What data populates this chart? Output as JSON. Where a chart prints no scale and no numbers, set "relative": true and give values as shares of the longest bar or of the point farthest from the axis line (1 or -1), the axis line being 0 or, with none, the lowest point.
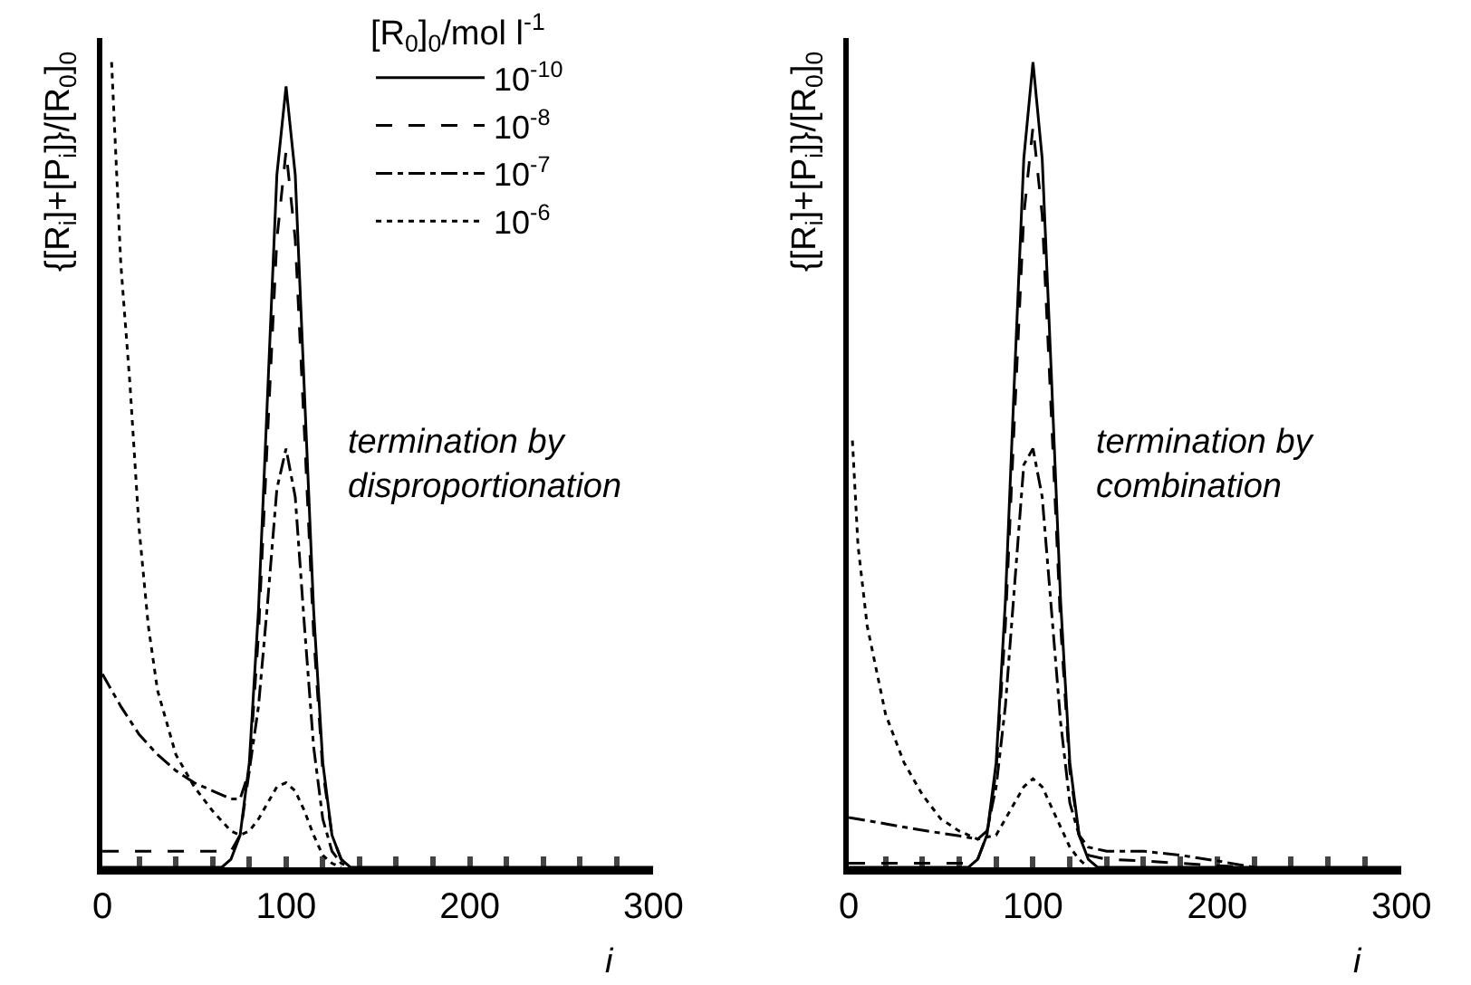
{
  "chart_data": [
    {
      "type": "line",
      "relative": true,
      "ylabel": "{[R$_{i}$]+[P$_{i}$]}/[R$_{0}$]$_{0}$",
      "xlabel": "i",
      "legend_title": "[R$_{0}$]$_{0}$/mol l$^{-1}$",
      "legend": "top right",
      "marker": "none",
      "annotations": [
        "termination by\ndisproportionation"
      ],
      "xlim": [
        0,
        300
      ],
      "xticks": [
        0,
        {
          "value": 20,
          "label": null
        },
        {
          "value": 40,
          "label": null
        },
        {
          "value": 60,
          "label": null
        },
        {
          "value": 80,
          "label": null
        },
        100,
        {
          "value": 120,
          "label": null
        },
        {
          "value": 140,
          "label": null
        },
        {
          "value": 160,
          "label": null
        },
        {
          "value": 180,
          "label": null
        },
        200,
        {
          "value": 220,
          "label": null
        },
        {
          "value": 240,
          "label": null
        },
        {
          "value": 260,
          "label": null
        },
        {
          "value": 280,
          "label": null
        },
        300
      ],
      "series": [
        {
          "name": "10$^{-10}$",
          "color": "#000000",
          "line_style": "solid",
          "x": [
            0,
            20,
            40,
            60,
            65,
            70,
            75,
            80,
            85,
            90,
            95,
            100,
            105,
            110,
            115,
            120,
            125,
            130,
            135,
            160,
            200,
            300
          ],
          "values": [
            0,
            0,
            0,
            0,
            0,
            0.01,
            0.04,
            0.13,
            0.32,
            0.59,
            0.86,
            0.97,
            0.86,
            0.59,
            0.32,
            0.13,
            0.04,
            0.01,
            0,
            0,
            0,
            0
          ]
        },
        {
          "name": "10$^{-8}$",
          "color": "#000000",
          "line_style": "dashed",
          "x": [
            0,
            20,
            40,
            60,
            65,
            70,
            75,
            80,
            85,
            90,
            95,
            100,
            105,
            110,
            115,
            120,
            125,
            130,
            135
          ],
          "values": [
            0.02,
            0.02,
            0.02,
            0.02,
            0.02,
            0.02,
            0.04,
            0.12,
            0.29,
            0.54,
            0.78,
            0.89,
            0.78,
            0.54,
            0.29,
            0.12,
            0.04,
            0.01,
            0
          ]
        },
        {
          "name": "10$^{-7}$",
          "color": "#000000",
          "line_style": "dashdot",
          "x": [
            0,
            10,
            20,
            30,
            40,
            50,
            60,
            70,
            75,
            80,
            85,
            90,
            95,
            100,
            105,
            110,
            115,
            120,
            125,
            130,
            135
          ],
          "values": [
            0.24,
            0.2,
            0.165,
            0.14,
            0.12,
            0.105,
            0.095,
            0.085,
            0.085,
            0.12,
            0.2,
            0.33,
            0.47,
            0.52,
            0.46,
            0.3,
            0.15,
            0.06,
            0.02,
            0.005,
            0
          ]
        },
        {
          "name": "10$^{-6}$",
          "color": "#000000",
          "line_style": "dotted",
          "x": [
            5,
            7,
            10,
            15,
            20,
            25,
            30,
            40,
            50,
            60,
            70,
            75,
            80,
            85,
            90,
            95,
            100,
            105,
            110,
            115,
            120,
            125,
            130
          ],
          "values": [
            1,
            0.9,
            0.75,
            0.6,
            0.42,
            0.3,
            0.22,
            0.14,
            0.1,
            0.07,
            0.045,
            0.04,
            0.045,
            0.06,
            0.08,
            0.1,
            0.105,
            0.095,
            0.07,
            0.04,
            0.015,
            0.005,
            0
          ]
        }
      ]
    },
    {
      "type": "line",
      "relative": true,
      "ylabel": "{[R$_{i}$]+[P$_{i}$]}/[R$_{0}$]$_{0}$",
      "xlabel": "i",
      "marker": "none",
      "annotations": [
        "termination by\ncombination"
      ],
      "xlim": [
        0,
        300
      ],
      "xticks": [
        0,
        {
          "value": 20,
          "label": null
        },
        {
          "value": 40,
          "label": null
        },
        {
          "value": 60,
          "label": null
        },
        {
          "value": 80,
          "label": null
        },
        100,
        {
          "value": 120,
          "label": null
        },
        {
          "value": 140,
          "label": null
        },
        {
          "value": 160,
          "label": null
        },
        {
          "value": 180,
          "label": null
        },
        200,
        {
          "value": 220,
          "label": null
        },
        {
          "value": 240,
          "label": null
        },
        {
          "value": 260,
          "label": null
        },
        {
          "value": 280,
          "label": null
        },
        300
      ],
      "series": [
        {
          "color": "#000000",
          "line_style": "solid",
          "x": [
            0,
            20,
            40,
            60,
            65,
            70,
            75,
            80,
            85,
            90,
            95,
            100,
            105,
            110,
            115,
            120,
            125,
            130,
            135,
            160,
            200,
            300
          ],
          "values": [
            0,
            0,
            0,
            0,
            0,
            0.01,
            0.04,
            0.13,
            0.33,
            0.61,
            0.88,
            1,
            0.88,
            0.61,
            0.33,
            0.13,
            0.04,
            0.01,
            0,
            0,
            0,
            0
          ]
        },
        {
          "color": "#000000",
          "line_style": "dashed",
          "x": [
            0,
            20,
            40,
            60,
            65,
            70,
            75,
            80,
            85,
            90,
            95,
            100,
            105,
            110,
            115,
            120,
            125,
            130,
            140,
            160,
            180,
            200,
            220
          ],
          "values": [
            0.005,
            0.005,
            0.005,
            0.005,
            0.005,
            0.01,
            0.04,
            0.12,
            0.3,
            0.56,
            0.81,
            0.92,
            0.81,
            0.56,
            0.3,
            0.12,
            0.04,
            0.015,
            0.01,
            0.008,
            0.005,
            0.002,
            0
          ]
        },
        {
          "color": "#000000",
          "line_style": "dashdot",
          "x": [
            0,
            20,
            40,
            60,
            70,
            75,
            80,
            85,
            90,
            95,
            100,
            105,
            110,
            115,
            120,
            125,
            130,
            140,
            160,
            180,
            200,
            220
          ],
          "values": [
            0.062,
            0.054,
            0.046,
            0.039,
            0.035,
            0.045,
            0.1,
            0.2,
            0.35,
            0.5,
            0.52,
            0.46,
            0.32,
            0.18,
            0.08,
            0.04,
            0.025,
            0.02,
            0.02,
            0.015,
            0.008,
            0
          ]
        },
        {
          "color": "#000000",
          "line_style": "dotted",
          "x": [
            2,
            5,
            10,
            20,
            30,
            40,
            50,
            60,
            70,
            80,
            85,
            90,
            95,
            100,
            105,
            110,
            115,
            120,
            125,
            130
          ],
          "values": [
            0.53,
            0.4,
            0.3,
            0.19,
            0.13,
            0.09,
            0.06,
            0.045,
            0.035,
            0.04,
            0.06,
            0.08,
            0.1,
            0.11,
            0.1,
            0.075,
            0.05,
            0.025,
            0.01,
            0
          ]
        }
      ]
    }
  ]
}
